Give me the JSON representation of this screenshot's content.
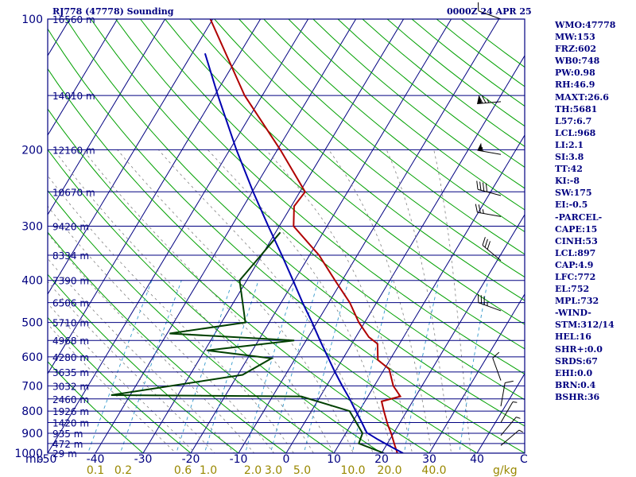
{
  "header": {
    "station": "RJ778 (47778) Sounding",
    "time": "0000Z 24 APR 25"
  },
  "stats": [
    "WMO:47778",
    "MW:153",
    "FRZ:602",
    "WB0:748",
    "PW:0.98",
    "RH:46.9",
    "MAXT:26.6",
    "TH:5681",
    "L57:6.7",
    "LCL:968",
    "LI:2.1",
    "SI:3.8",
    "TT:42",
    "KI:-8",
    "SW:175",
    "EI:-0.5",
    "-PARCEL-",
    "CAPE:15",
    "CINH:53",
    "LCL:897",
    "CAP:4.9",
    "LFC:772",
    "EL:752",
    "MPL:732",
    "-WIND-",
    "STM:312/14",
    "HEL:16",
    "SHR+:0.0",
    "SRDS:67",
    "EHI:0.0",
    "BRN:0.4",
    "BSHR:36"
  ],
  "colors": {
    "frame": "#000080",
    "isobar": "#000080",
    "isotherm": "#000080",
    "dry_adiabat": "#00a000",
    "moist_adiabat": "#808080",
    "mixing_ratio": "#3399cc",
    "temperature": "#b00000",
    "dewpoint": "#004000",
    "parcel": "#0000b0",
    "mixing_ratio_labels": "#998800",
    "text": "#000080"
  },
  "chart_data": {
    "type": "line",
    "subtype": "skew-t log-p",
    "xlabel": "C",
    "ylabel": "mb",
    "xlim": [
      -50,
      50
    ],
    "ylim": [
      1000,
      100
    ],
    "y_scale": "log",
    "pressure_labels": [
      100,
      200,
      300,
      400,
      500,
      600,
      700,
      800,
      900,
      1000
    ],
    "temperature_ticks": [
      "-50",
      "-40",
      "-30",
      "-20",
      "-10",
      "0",
      "10",
      "20",
      "30",
      "40"
    ],
    "mixing_ratio_labels": [
      "0.1",
      "0.2",
      "0.6",
      "1.0",
      "2.0",
      "3.0",
      "5.0",
      "10.0",
      "20.0",
      "40.0"
    ],
    "mixing_ratio_unit": "g/kg",
    "height_levels": [
      {
        "p": 100,
        "label": "16560 m"
      },
      {
        "p": 150,
        "label": "14010 m"
      },
      {
        "p": 200,
        "label": "12160 m"
      },
      {
        "p": 250,
        "label": "10670 m"
      },
      {
        "p": 300,
        "label": "9420 m"
      },
      {
        "p": 350,
        "label": "8334 m"
      },
      {
        "p": 400,
        "label": "7390 m"
      },
      {
        "p": 450,
        "label": "6506 m"
      },
      {
        "p": 500,
        "label": "5710 m"
      },
      {
        "p": 550,
        "label": "4968 m"
      },
      {
        "p": 600,
        "label": "4280 m"
      },
      {
        "p": 650,
        "label": "3635 m"
      },
      {
        "p": 700,
        "label": "3032 m"
      },
      {
        "p": 750,
        "label": "2460 m"
      },
      {
        "p": 800,
        "label": "1926 m"
      },
      {
        "p": 850,
        "label": "1420 m"
      },
      {
        "p": 900,
        "label": "935 m"
      },
      {
        "p": 950,
        "label": "472 m"
      },
      {
        "p": 1000,
        "label": "29 m"
      }
    ],
    "series": [
      {
        "role": "temperature",
        "points": [
          {
            "p": 1000,
            "t": 23.3
          },
          {
            "p": 960,
            "t": 21.8
          },
          {
            "p": 900,
            "t": 19.5
          },
          {
            "p": 860,
            "t": 17.7
          },
          {
            "p": 800,
            "t": 15.2
          },
          {
            "p": 760,
            "t": 13.5
          },
          {
            "p": 740,
            "t": 16.8
          },
          {
            "p": 700,
            "t": 14.0
          },
          {
            "p": 640,
            "t": 11.0
          },
          {
            "p": 610,
            "t": 7.5
          },
          {
            "p": 560,
            "t": 5.4
          },
          {
            "p": 540,
            "t": 2.7
          },
          {
            "p": 500,
            "t": -1.2
          },
          {
            "p": 450,
            "t": -5.6
          },
          {
            "p": 400,
            "t": -11.5
          },
          {
            "p": 350,
            "t": -18.0
          },
          {
            "p": 300,
            "t": -27.0
          },
          {
            "p": 270,
            "t": -29.4
          },
          {
            "p": 250,
            "t": -28.9
          },
          {
            "p": 200,
            "t": -39.4
          },
          {
            "p": 150,
            "t": -53.7
          },
          {
            "p": 100,
            "t": -70.5
          }
        ]
      },
      {
        "role": "dewpoint",
        "points": [
          {
            "p": 1000,
            "t": 20.5
          },
          {
            "p": 950,
            "t": 14.0
          },
          {
            "p": 900,
            "t": 13.5
          },
          {
            "p": 800,
            "t": 8.0
          },
          {
            "p": 740,
            "t": -4.0
          },
          {
            "p": 735,
            "t": -44.0
          },
          {
            "p": 660,
            "t": -19.0
          },
          {
            "p": 605,
            "t": -15.0
          },
          {
            "p": 580,
            "t": -29.5
          },
          {
            "p": 550,
            "t": -12.5
          },
          {
            "p": 530,
            "t": -39.5
          },
          {
            "p": 500,
            "t": -25.0
          },
          {
            "p": 400,
            "t": -31.5
          },
          {
            "p": 380,
            "t": -31.0
          },
          {
            "p": 310,
            "t": -29.0
          }
        ]
      },
      {
        "role": "parcel",
        "points": [
          {
            "p": 1000,
            "t": 24.5
          },
          {
            "p": 970,
            "t": 21.5
          },
          {
            "p": 930,
            "t": 17.5
          },
          {
            "p": 897,
            "t": 14.3
          },
          {
            "p": 850,
            "t": 12.0
          },
          {
            "p": 800,
            "t": 9.3
          },
          {
            "p": 750,
            "t": 6.5
          },
          {
            "p": 700,
            "t": 3.3
          },
          {
            "p": 650,
            "t": 0.0
          },
          {
            "p": 600,
            "t": -3.4
          },
          {
            "p": 550,
            "t": -7.1
          },
          {
            "p": 500,
            "t": -11.0
          },
          {
            "p": 450,
            "t": -15.5
          },
          {
            "p": 400,
            "t": -20.3
          },
          {
            "p": 350,
            "t": -25.8
          },
          {
            "p": 300,
            "t": -32.3
          },
          {
            "p": 250,
            "t": -39.8
          },
          {
            "p": 200,
            "t": -48.6
          },
          {
            "p": 150,
            "t": -59.3
          },
          {
            "p": 120,
            "t": -67.3
          }
        ]
      }
    ],
    "wind_barbs": [
      {
        "p": 100,
        "dir": 290,
        "spd": 10
      },
      {
        "p": 155,
        "dir": 265,
        "spd": 75
      },
      {
        "p": 205,
        "dir": 280,
        "spd": 55
      },
      {
        "p": 255,
        "dir": 285,
        "spd": 40
      },
      {
        "p": 285,
        "dir": 280,
        "spd": 25
      },
      {
        "p": 360,
        "dir": 310,
        "spd": 30
      },
      {
        "p": 470,
        "dir": 290,
        "spd": 35
      },
      {
        "p": 680,
        "dir": 340,
        "spd": 10
      },
      {
        "p": 780,
        "dir": 10,
        "spd": 10
      },
      {
        "p": 850,
        "dir": 30,
        "spd": 5
      },
      {
        "p": 910,
        "dir": 40,
        "spd": 5
      },
      {
        "p": 960,
        "dir": 50,
        "spd": 5
      }
    ]
  }
}
